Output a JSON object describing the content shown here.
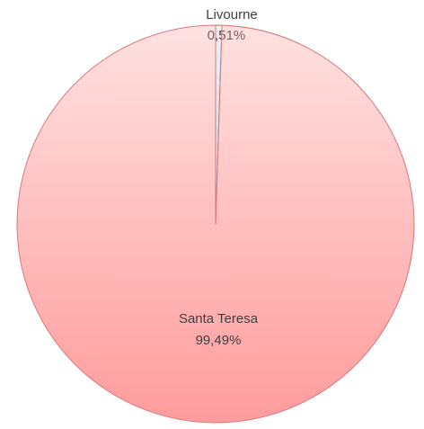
{
  "chart_data": {
    "type": "pie",
    "categories": [
      "Livourne",
      "Santa Teresa"
    ],
    "values": [
      0.51,
      99.49
    ],
    "value_labels": [
      "0,51%",
      "99,49%"
    ],
    "colors": [
      "#b8d8ec",
      "#ff9c9c"
    ],
    "edge_colors": [
      "#7a9a3a",
      "#d9787a"
    ]
  }
}
